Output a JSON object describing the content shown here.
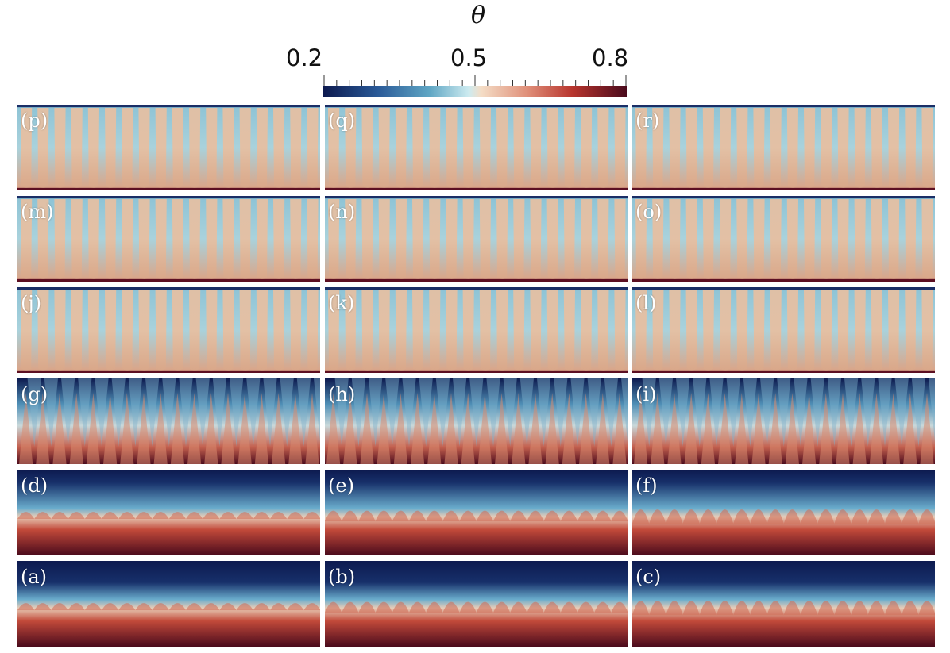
{
  "colorbar": {
    "title": "θ",
    "min_label": "0.2",
    "mid_label": "0.5",
    "max_label": "0.8",
    "range": [
      0.2,
      0.8
    ],
    "colors": [
      "#0d1a4f",
      "#5fa6c4",
      "#f0eee6",
      "#b8352e",
      "#4a0a1c"
    ]
  },
  "panels": [
    {
      "label": "(p)",
      "row": 0,
      "col": 0,
      "kind": "columns"
    },
    {
      "label": "(q)",
      "row": 0,
      "col": 1,
      "kind": "columns"
    },
    {
      "label": "(r)",
      "row": 0,
      "col": 2,
      "kind": "columns"
    },
    {
      "label": "(m)",
      "row": 1,
      "col": 0,
      "kind": "columns"
    },
    {
      "label": "(n)",
      "row": 1,
      "col": 1,
      "kind": "columns"
    },
    {
      "label": "(o)",
      "row": 1,
      "col": 2,
      "kind": "columns"
    },
    {
      "label": "(j)",
      "row": 2,
      "col": 0,
      "kind": "columns"
    },
    {
      "label": "(k)",
      "row": 2,
      "col": 1,
      "kind": "columns"
    },
    {
      "label": "(l)",
      "row": 2,
      "col": 2,
      "kind": "columns"
    },
    {
      "label": "(g)",
      "row": 3,
      "col": 0,
      "kind": "fingers"
    },
    {
      "label": "(h)",
      "row": 3,
      "col": 1,
      "kind": "fingers"
    },
    {
      "label": "(i)",
      "row": 3,
      "col": 2,
      "kind": "fingers"
    },
    {
      "label": "(d)",
      "row": 4,
      "col": 0,
      "kind": "waves"
    },
    {
      "label": "(e)",
      "row": 4,
      "col": 1,
      "kind": "waves"
    },
    {
      "label": "(f)",
      "row": 4,
      "col": 2,
      "kind": "waves"
    },
    {
      "label": "(a)",
      "row": 5,
      "col": 0,
      "kind": "waves"
    },
    {
      "label": "(b)",
      "row": 5,
      "col": 1,
      "kind": "waves"
    },
    {
      "label": "(c)",
      "row": 5,
      "col": 2,
      "kind": "waves"
    }
  ]
}
